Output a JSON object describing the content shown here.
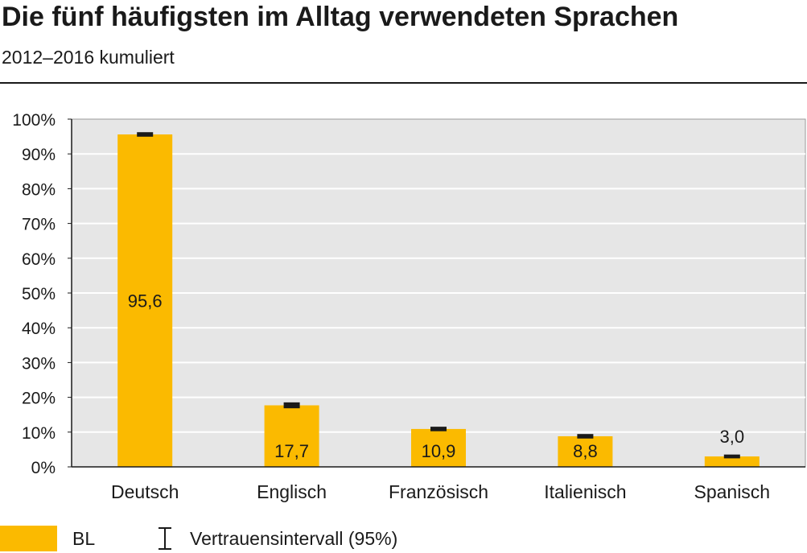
{
  "chart_data": {
    "type": "bar",
    "title": "Die fünf häufigsten im Alltag verwendeten Sprachen",
    "subtitle": "2012–2016 kumuliert",
    "categories": [
      "Deutsch",
      "Englisch",
      "Französisch",
      "Italienisch",
      "Spanisch"
    ],
    "series": [
      {
        "name": "BL",
        "color": "#FBBA00",
        "values": [
          95.6,
          17.7,
          10.9,
          8.8,
          3.0
        ],
        "value_labels": [
          "95,6",
          "17,7",
          "10,9",
          "8,8",
          "3,0"
        ],
        "ci_low": [
          95.3,
          17.2,
          10.6,
          8.5,
          2.8
        ],
        "ci_high": [
          95.9,
          18.2,
          11.2,
          9.1,
          3.2
        ]
      }
    ],
    "ylim": [
      0,
      100
    ],
    "yticks": [
      0,
      10,
      20,
      30,
      40,
      50,
      60,
      70,
      80,
      90,
      100
    ],
    "ytick_labels": [
      "0%",
      "10%",
      "20%",
      "30%",
      "40%",
      "50%",
      "60%",
      "70%",
      "80%",
      "90%",
      "100%"
    ],
    "grid": true,
    "legend": {
      "placement": "bottom-left",
      "items": [
        {
          "label": "BL",
          "kind": "swatch"
        },
        {
          "label": "Vertrauensintervall (95%)",
          "kind": "error-bar-icon"
        }
      ]
    }
  },
  "colors": {
    "bar": "#FBBA00",
    "plot_bg": "#E6E6E6",
    "grid": "#FFFFFF",
    "text": "#1A1A1A"
  }
}
